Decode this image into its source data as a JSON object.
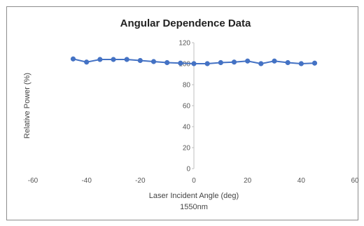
{
  "chart_data": {
    "type": "scatter",
    "title": "Angular Dependence Data",
    "xlabel": "Laser Incident Angle (deg)",
    "xlabel_sub": "1550nm",
    "ylabel": "Relative Power (%)",
    "xlim": [
      -60,
      60
    ],
    "ylim": [
      0,
      120
    ],
    "x_ticks": [
      "-60",
      "-40",
      "-20",
      "0",
      "20",
      "40",
      "60"
    ],
    "y_ticks": [
      "0",
      "20",
      "40",
      "60",
      "80",
      "100",
      "120"
    ],
    "grid": false,
    "legend": "none",
    "series": [
      {
        "color": "#4472c4",
        "marker": "circle",
        "line": true,
        "x": [
          -45,
          -40,
          -35,
          -30,
          -25,
          -20,
          -15,
          -10,
          -5,
          0,
          5,
          10,
          15,
          20,
          25,
          30,
          35,
          40,
          45
        ],
        "y": [
          104.5,
          101.5,
          104,
          104,
          104,
          103,
          102,
          101,
          100.5,
          100,
          100,
          101,
          101.5,
          102.5,
          100,
          102.5,
          101,
          100,
          100.5
        ]
      }
    ]
  }
}
